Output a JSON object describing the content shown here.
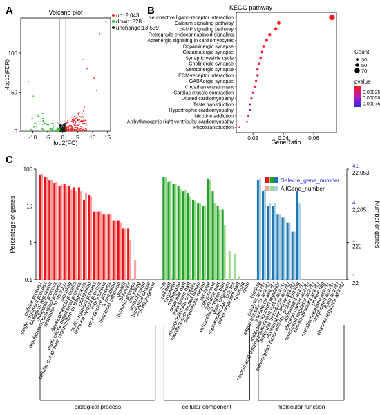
{
  "panels": {
    "a": "A",
    "b": "B",
    "c": "C"
  },
  "chart_data": [
    {
      "type": "scatter",
      "id": "volcano",
      "title": "Volcano plot",
      "xlabel": "log2(FC)",
      "ylabel": "-log10(FDR)",
      "xlim": [
        -14,
        16
      ],
      "ylim": [
        0,
        145
      ],
      "xticks": [
        -10,
        -5,
        0,
        5,
        10,
        15
      ],
      "yticks": [
        0,
        50,
        100
      ],
      "threshold_fc": 1,
      "threshold_y": 1.3,
      "legend": [
        {
          "label": "up: 2,043",
          "color": "#ee2222"
        },
        {
          "label": "down: 828",
          "color": "#22bb22"
        },
        {
          "label": "unchange:13,539",
          "color": "#222222"
        }
      ],
      "counts": {
        "up": 2043,
        "down": 828,
        "unchange": 13539
      },
      "outliers": [
        {
          "x": 14.5,
          "y": 140,
          "g": "up"
        },
        {
          "x": 12.3,
          "y": 125,
          "g": "up"
        },
        {
          "x": 8.2,
          "y": 80,
          "g": "up"
        },
        {
          "x": 10.5,
          "y": 68,
          "g": "up"
        },
        {
          "x": -11.5,
          "y": 63,
          "g": "down"
        },
        {
          "x": -9.8,
          "y": 45,
          "g": "down"
        },
        {
          "x": 6.8,
          "y": 92,
          "g": "up"
        },
        {
          "x": 11.4,
          "y": 52,
          "g": "up"
        }
      ]
    },
    {
      "type": "scatter",
      "id": "kegg",
      "title": "KEGG pathway",
      "xlabel": "GeneRatio",
      "xlim": [
        0.009,
        0.075
      ],
      "xticks": [
        0.02,
        0.04,
        0.06
      ],
      "categories": [
        "Neuroactive ligand-receptor interaction",
        "Calcium signaling pathway",
        "cAMP signaling pathway",
        "Retrograde endocannabinoid signaling",
        "Adrenergic signaling in cardiomyocytes",
        "Dopaminergic synapse",
        "Glutamatergic synapse",
        "Synaptic vesicle cycle",
        "Cholinergic synapse",
        "Serotonergic synapse",
        "ECM-receptor interaction",
        "GABAergic synapse",
        "Circadian entrainment",
        "Cardiac muscle contraction",
        "Dilated cardiomyopathy",
        "Taste transduction",
        "Hypertrophic cardiomyopathy",
        "Nicotine addiction",
        "Arrhythmogenic right ventricular cardiomyopathy",
        "Phototransduction"
      ],
      "gene_ratio": [
        0.072,
        0.037,
        0.035,
        0.031,
        0.029,
        0.027,
        0.026,
        0.025,
        0.024,
        0.023,
        0.023,
        0.022,
        0.021,
        0.02,
        0.019,
        0.018,
        0.018,
        0.017,
        0.016,
        0.011
      ],
      "count": [
        80,
        42,
        40,
        36,
        33,
        30,
        29,
        28,
        27,
        27,
        26,
        25,
        24,
        23,
        22,
        21,
        21,
        20,
        18,
        12
      ],
      "pvalue": [
        1e-05,
        2e-05,
        2e-05,
        3e-05,
        4e-05,
        5e-05,
        6e-05,
        7e-05,
        8e-05,
        0.0001,
        0.00012,
        0.00013,
        0.00015,
        0.0002,
        0.00025,
        0.00045,
        0.00085,
        0.00012,
        0.0004,
        0.0001
      ],
      "size_legend": {
        "title": "Count",
        "values": [
          30,
          50,
          70
        ]
      },
      "color_legend": {
        "title": "pvalue",
        "ticks": [
          0.00025,
          0.0005,
          0.00075
        ],
        "tick_labels": [
          "0.00025",
          "0.00050",
          "0.00075"
        ],
        "low_color": "#ff1a1a",
        "high_color": "#2a2ae6"
      }
    },
    {
      "type": "bar",
      "id": "go",
      "ylabel": "Percentage of genes",
      "ylabel_right": "Number of genes",
      "yscale": "log",
      "ylim": [
        0.1,
        100
      ],
      "yticks": [
        0.1,
        1,
        10,
        100
      ],
      "ytick_labels": [
        "0.1",
        "1",
        "10",
        "100"
      ],
      "right_ticks": [
        {
          "at": 0.1,
          "top": "1",
          "bottom": "22"
        },
        {
          "at": 1,
          "top": "1",
          "bottom": "220"
        },
        {
          "at": 10,
          "top": "4",
          "bottom": "2,205"
        },
        {
          "at": 100,
          "top": "41",
          "bottom": "22,053"
        }
      ],
      "legend": [
        {
          "label": "Selecte_gene_number",
          "colors": [
            "#e8161a",
            "#21a02c",
            "#1d77b0"
          ]
        },
        {
          "label": "AllGene_number",
          "colors": [
            "#f4a09d",
            "#9bd98d",
            "#a8cfe6"
          ]
        }
      ],
      "groups": [
        {
          "name": "biological process",
          "dark": "#e8161a",
          "light": "#f4a09d",
          "categories": [
            "cellular process",
            "single-organism process",
            "biological regulation",
            "metabolic process",
            "regulation of biological process",
            "response to stimulus",
            "signaling",
            "developmental process",
            "multicellular organismal process",
            "cellular component organization or biogenesis",
            "localization",
            "multi-organism process",
            "immune system process",
            "reproduction",
            "reproductive process",
            "locomotion",
            "biological adhesion",
            "growth",
            "behavior",
            "rhythmic process",
            "cell killing",
            "detoxification",
            "biological phase",
            "cell aggregation"
          ],
          "selected": [
            70,
            60,
            50,
            42,
            35,
            40,
            35,
            32,
            32,
            15,
            20,
            7,
            7,
            6,
            6,
            4,
            4,
            2.5,
            2.5,
            0,
            0,
            0,
            0,
            0
          ],
          "all": [
            75,
            60,
            50,
            45,
            38,
            35,
            28,
            25,
            25,
            22,
            18,
            7,
            7,
            6,
            6,
            4,
            3.5,
            2.5,
            1.2,
            0.35,
            0,
            0,
            0,
            0
          ]
        },
        {
          "name": "cellular component",
          "dark": "#21a02c",
          "light": "#9bd98d",
          "categories": [
            "cell",
            "cell part",
            "organelle",
            "membrane",
            "organelle part",
            "membrane part",
            "macromolecular complex",
            "membrane-enclosed lumen",
            "extracellular region",
            "synapse",
            "cell junction",
            "synapse part",
            "extracellular region part",
            "other organism",
            "supramolecular complex",
            "other organism part",
            "nucleoid",
            "virion"
          ],
          "selected": [
            60,
            45,
            40,
            35,
            25,
            22,
            15,
            12,
            10,
            55,
            25,
            10,
            8,
            0,
            0,
            0,
            0,
            0
          ],
          "all": [
            60,
            48,
            40,
            30,
            27,
            18,
            14,
            12,
            10,
            50,
            12,
            8,
            3,
            0.6,
            0.5,
            0.12,
            0,
            0
          ]
        },
        {
          "name": "molecular function",
          "dark": "#1d77b0",
          "light": "#a8cfe6",
          "categories": [
            "binding",
            "catalytic activity",
            "signal transducer activity",
            "transporter activity",
            "molecular function regulator",
            "nucleic acid binding transcription factor activity",
            "molecular transducer activity",
            "structural molecule activity",
            "transcription factor activity, protein binding",
            "antioxidant activity",
            "electron carrier activity",
            "translation regulator activity",
            "chemoattractant activity",
            "protein tag",
            "metallochaperone activity",
            "morphogen activity",
            "toxin activity",
            "channel regulator activity"
          ],
          "selected": [
            50,
            25,
            10,
            10,
            6,
            5,
            3.5,
            2,
            25,
            0,
            0,
            0,
            0,
            0,
            0,
            0,
            0,
            0
          ],
          "all": [
            55,
            28,
            12,
            12,
            6,
            5,
            3.5,
            2,
            12,
            0,
            0,
            0,
            0,
            0,
            0,
            0,
            0,
            0
          ]
        }
      ]
    }
  ]
}
